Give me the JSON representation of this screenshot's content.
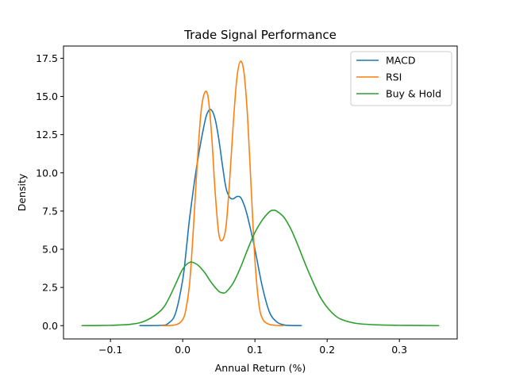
{
  "chart_data": {
    "type": "line",
    "title": "Trade Signal Performance",
    "xlabel": "Annual Return (%)",
    "ylabel": "Density",
    "xlim": [
      -0.165,
      0.38
    ],
    "ylim": [
      -0.87,
      18.3
    ],
    "x_ticks": [
      -0.1,
      0.0,
      0.1,
      0.2,
      0.3
    ],
    "x_tick_labels": [
      "−0.1",
      "0.0",
      "0.1",
      "0.2",
      "0.3"
    ],
    "y_ticks": [
      0,
      2.5,
      5,
      7.5,
      10,
      12.5,
      15,
      17.5
    ],
    "y_tick_labels": [
      "0.0",
      "2.5",
      "5.0",
      "7.5",
      "10.0",
      "12.5",
      "15.0",
      "17.5"
    ],
    "grid": false,
    "legend": "top-right",
    "series": [
      {
        "name": "MACD",
        "color": "#1f77b4",
        "x": [
          -0.06,
          -0.03,
          -0.02,
          -0.01,
          0.0,
          0.005,
          0.01,
          0.02,
          0.03,
          0.035,
          0.04,
          0.045,
          0.05,
          0.055,
          0.06,
          0.065,
          0.07,
          0.075,
          0.08,
          0.085,
          0.09,
          0.1,
          0.11,
          0.12,
          0.13,
          0.14,
          0.15,
          0.165
        ],
        "y": [
          0,
          0.02,
          0.15,
          0.8,
          3.0,
          5.0,
          7.2,
          10.6,
          13.2,
          14.0,
          14.1,
          13.5,
          12.2,
          10.5,
          9.0,
          8.4,
          8.3,
          8.45,
          8.4,
          7.9,
          7.1,
          5.0,
          2.6,
          0.9,
          0.25,
          0.05,
          0.01,
          0
        ]
      },
      {
        "name": "RSI",
        "color": "#ff7f0e",
        "x": [
          -0.03,
          -0.01,
          0.0,
          0.005,
          0.01,
          0.015,
          0.02,
          0.025,
          0.03,
          0.035,
          0.04,
          0.045,
          0.05,
          0.055,
          0.06,
          0.065,
          0.07,
          0.075,
          0.08,
          0.085,
          0.09,
          0.095,
          0.1,
          0.105,
          0.11,
          0.12,
          0.14
        ],
        "y": [
          0,
          0.05,
          0.4,
          1.2,
          3.0,
          6.5,
          10.5,
          13.8,
          15.2,
          15.0,
          12.5,
          8.7,
          6.0,
          5.6,
          6.5,
          9.5,
          13.2,
          16.2,
          17.3,
          16.5,
          13.5,
          8.8,
          4.3,
          1.6,
          0.5,
          0.08,
          0
        ]
      },
      {
        "name": "Buy & Hold",
        "color": "#2ca02c",
        "x": [
          -0.14,
          -0.1,
          -0.07,
          -0.05,
          -0.03,
          -0.02,
          -0.01,
          0.0,
          0.01,
          0.02,
          0.03,
          0.04,
          0.05,
          0.055,
          0.06,
          0.07,
          0.08,
          0.09,
          0.1,
          0.11,
          0.12,
          0.125,
          0.13,
          0.14,
          0.15,
          0.16,
          0.17,
          0.18,
          0.19,
          0.2,
          0.21,
          0.22,
          0.24,
          0.27,
          0.3,
          0.33,
          0.355
        ],
        "y": [
          0,
          0.02,
          0.1,
          0.35,
          1.0,
          1.7,
          2.7,
          3.7,
          4.15,
          4.0,
          3.5,
          2.8,
          2.25,
          2.15,
          2.2,
          2.8,
          3.8,
          5.0,
          6.1,
          6.9,
          7.45,
          7.55,
          7.5,
          7.1,
          6.3,
          5.2,
          4.0,
          2.9,
          1.9,
          1.2,
          0.7,
          0.4,
          0.15,
          0.05,
          0.02,
          0.01,
          0
        ]
      }
    ]
  }
}
